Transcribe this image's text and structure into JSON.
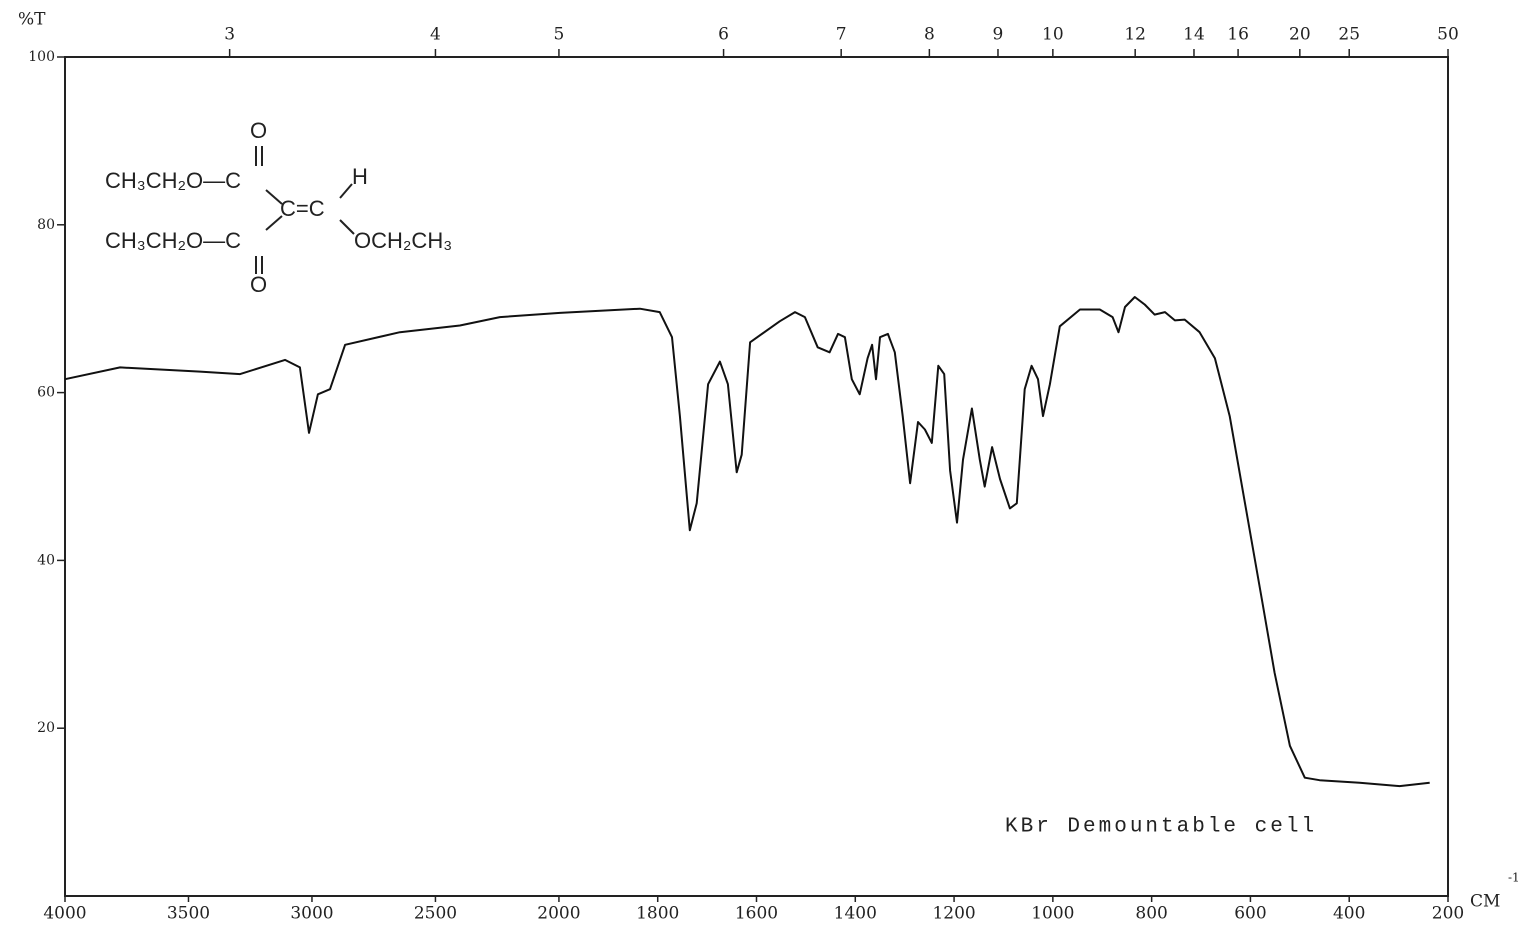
{
  "chart_data": {
    "type": "line",
    "y_label": "%T",
    "x_label": "CM",
    "x_label_sup": "-1",
    "annotation": "KBr Demountable cell",
    "structure": {
      "top_o": "O",
      "upper_left": "CH₃CH₂O—C",
      "lower_left": "CH₃CH₂O—C",
      "double_bond": "C=C",
      "h": "H",
      "right": "OCH₂CH₃",
      "bottom_o": "O"
    },
    "xlim": [
      4000,
      200
    ],
    "x_scale_change": 2000,
    "x_scale_ratio": 2,
    "xticks": [
      4000,
      3500,
      3000,
      2500,
      2000,
      1800,
      1600,
      1400,
      1200,
      1000,
      800,
      600,
      400,
      200
    ],
    "x2ticks": [
      3,
      4,
      5,
      6,
      7,
      8,
      9,
      10,
      12,
      14,
      16,
      20,
      25,
      50
    ],
    "ylim": [
      0,
      100
    ],
    "yticks": [
      20,
      40,
      60,
      80,
      100
    ],
    "series": [
      {
        "color": "#111111",
        "x": [
          4000,
          3777,
          3453,
          3291,
          3109,
          3049,
          3012,
          2976,
          2927,
          2866,
          2644,
          2401,
          2239,
          1998,
          1836,
          1796,
          1771,
          1755,
          1735,
          1721,
          1698,
          1674,
          1658,
          1640,
          1630,
          1613,
          1553,
          1522,
          1502,
          1476,
          1452,
          1435,
          1421,
          1407,
          1391,
          1375,
          1366,
          1358,
          1350,
          1334,
          1320,
          1304,
          1289,
          1273,
          1259,
          1245,
          1232,
          1220,
          1208,
          1194,
          1182,
          1164,
          1148,
          1138,
          1123,
          1107,
          1087,
          1073,
          1057,
          1043,
          1030,
          1020,
          1006,
          986,
          945,
          905,
          879,
          867,
          854,
          834,
          814,
          794,
          773,
          753,
          733,
          703,
          672,
          642,
          611,
          577,
          551,
          520,
          490,
          460,
          379,
          298,
          237
        ],
        "values": [
          61.6,
          63,
          62.5,
          62.2,
          63.9,
          63,
          55.2,
          59.8,
          60.4,
          65.7,
          67.2,
          68,
          69,
          69.5,
          70,
          69.6,
          66.6,
          57.2,
          43.6,
          46.8,
          61,
          63.7,
          61,
          50.5,
          52.6,
          66,
          68.5,
          69.6,
          69,
          65.4,
          64.8,
          67,
          66.6,
          61.6,
          59.8,
          64.1,
          65.7,
          61.6,
          66.6,
          67,
          64.8,
          57.2,
          49.2,
          56.5,
          55.6,
          54,
          63.2,
          62.2,
          50.7,
          44.5,
          52,
          58.1,
          52,
          48.8,
          53.5,
          49.7,
          46.2,
          46.8,
          60.4,
          63.2,
          61.6,
          57.2,
          61,
          67.9,
          69.9,
          69.9,
          69,
          67.2,
          70.2,
          71.4,
          70.5,
          69.3,
          69.6,
          68.6,
          68.7,
          67.2,
          64.1,
          57.2,
          46.8,
          35.4,
          26.6,
          17.9,
          14.1,
          13.8,
          13.5,
          13.1,
          13.5
        ]
      }
    ]
  }
}
